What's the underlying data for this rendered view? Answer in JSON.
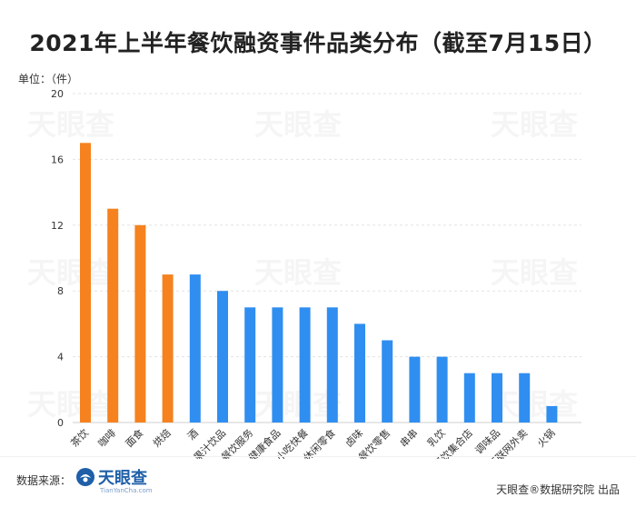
{
  "chart_data": {
    "type": "bar",
    "title": "2021年上半年餐饮融资事件品类分布（截至7月15日）",
    "unit_label": "单位：（件）",
    "categories": [
      "茶饮",
      "咖啡",
      "面食",
      "烘焙",
      "酒",
      "果汁饮品",
      "餐饮服务",
      "健康食品",
      "小吃快餐",
      "休闲零食",
      "卤味",
      "餐饮零售",
      "串串",
      "乳饮",
      "餐饮集合店",
      "调味品",
      "互联网外卖",
      "火锅"
    ],
    "values": [
      17,
      13,
      12,
      9,
      9,
      8,
      7,
      7,
      7,
      7,
      6,
      5,
      4,
      4,
      3,
      3,
      3,
      1
    ],
    "highlight_count": 4,
    "ylim": [
      0,
      20
    ],
    "yticks": [
      0,
      4,
      8,
      12,
      16,
      20
    ],
    "colors": {
      "highlight": "#f5821f",
      "normal": "#2f8ef0"
    },
    "grid": true,
    "legend": "none"
  },
  "footer": {
    "source_label": "数据来源：",
    "logo_text": "天眼查",
    "logo_sub": "TianYanCha.com",
    "credit": "天眼查®数据研究院 出品"
  },
  "watermark_text": "天眼查"
}
